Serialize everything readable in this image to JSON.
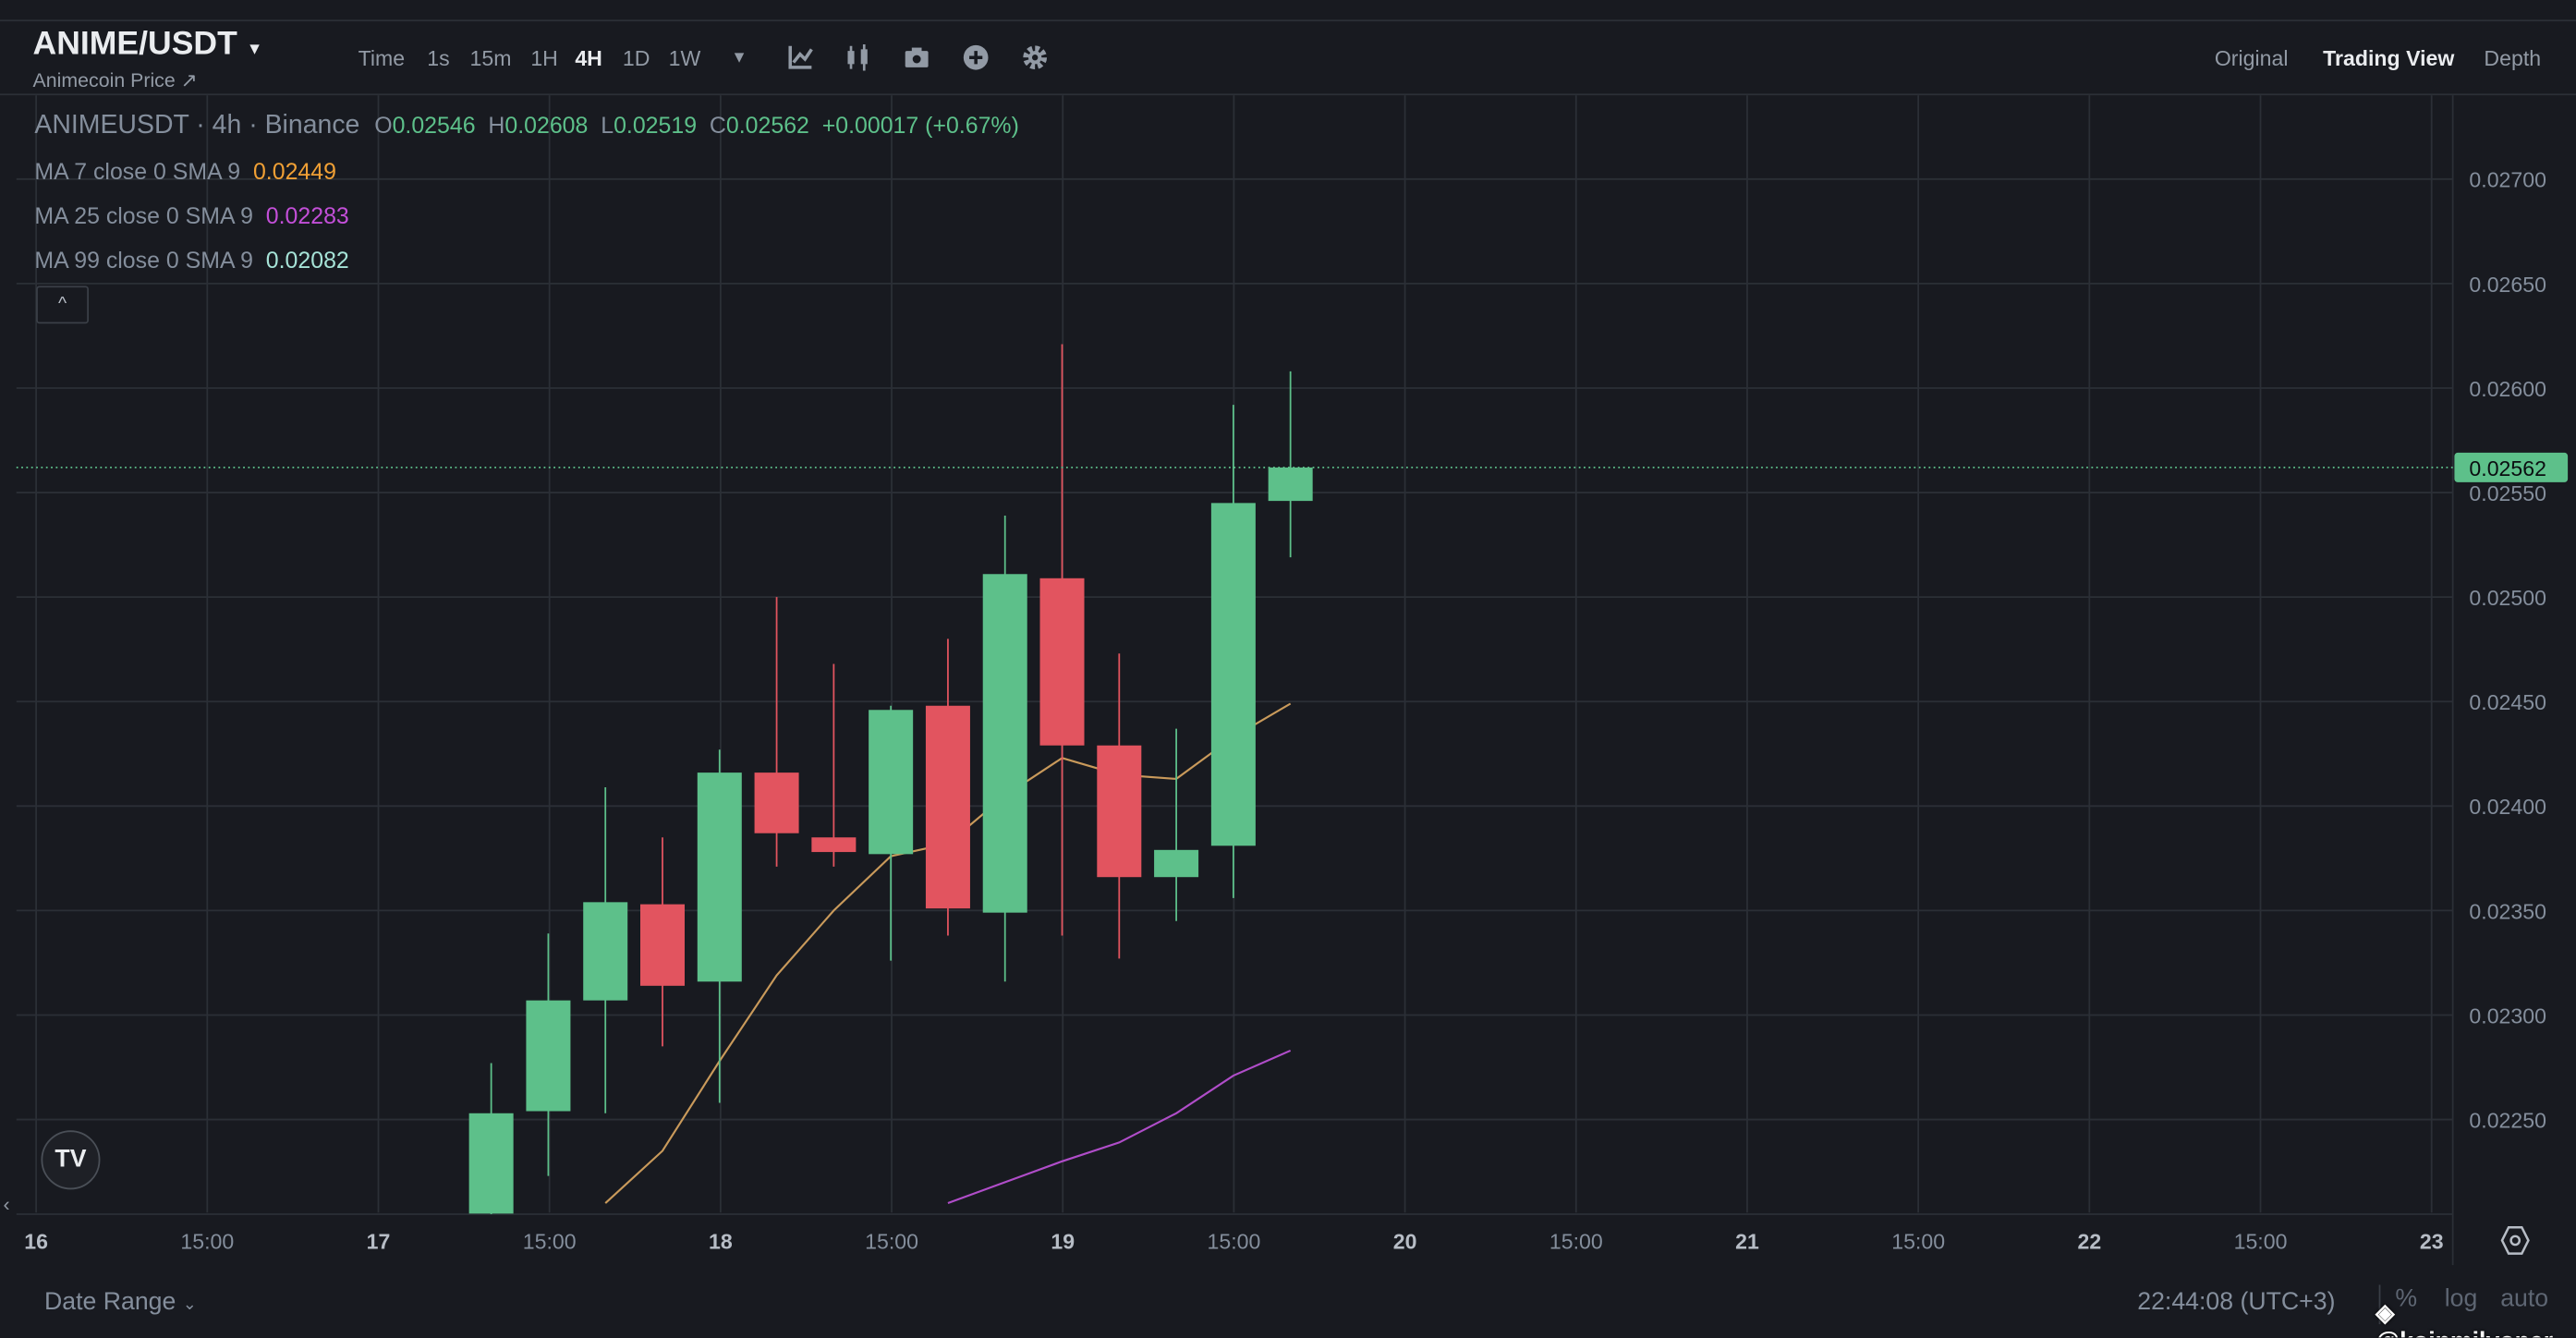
{
  "header": {
    "pair": "ANIME/USDT",
    "subtitle": "Animecoin Price ↗",
    "timeframes": [
      "Time",
      "1s",
      "15m",
      "1H",
      "4H",
      "1D",
      "1W"
    ],
    "active_timeframe": "4H",
    "tools": [
      "indicator-icon",
      "candle-type-icon",
      "camera-icon",
      "plus-circle-icon",
      "gear-icon"
    ],
    "views": [
      "Original",
      "Trading View",
      "Depth"
    ],
    "active_view": "Trading View"
  },
  "legend": {
    "symbol": "ANIMEUSDT · 4h · Binance",
    "o_label": "O",
    "o": "0.02546",
    "h_label": "H",
    "h": "0.02608",
    "l_label": "L",
    "l": "0.02519",
    "c_label": "C",
    "c": "0.02562",
    "change": "+0.00017 (+0.67%)",
    "ma": [
      {
        "label": "MA 7 close 0 SMA 9",
        "value": "0.02449",
        "color": "#f0a035"
      },
      {
        "label": "MA 25 close 0 SMA 9",
        "value": "0.02283",
        "color": "#c34fd8"
      },
      {
        "label": "MA 99 close 0 SMA 9",
        "value": "0.02082",
        "color": "#a6e3d7"
      }
    ]
  },
  "footer": {
    "date_range": "Date Range",
    "clock": "22:44:08 (UTC+3)",
    "percent": "%",
    "log": "log",
    "auto": "auto",
    "watermark": "@koinmilyoner"
  },
  "chart_data": {
    "type": "candlestick",
    "ylim": [
      0.0221,
      0.02745
    ],
    "y_ticks": [
      "0.02700",
      "0.02650",
      "0.02600",
      "0.02550",
      "0.02500",
      "0.02450",
      "0.02400",
      "0.02350",
      "0.02300",
      "0.02250"
    ],
    "x_ticks": [
      "16",
      "15:00",
      "17",
      "15:00",
      "18",
      "15:00",
      "19",
      "15:00",
      "20",
      "15:00",
      "21",
      "15:00",
      "22",
      "15:00",
      "23"
    ],
    "current_price": "0.02562",
    "up_color": "#5dc08a",
    "down_color": "#e2545f",
    "candles": [
      {
        "t": "17 08:00",
        "o": 0.02205,
        "h": 0.02277,
        "l": 0.0219,
        "c": 0.02253
      },
      {
        "t": "17 12:00",
        "o": 0.02254,
        "h": 0.02339,
        "l": 0.02223,
        "c": 0.02307
      },
      {
        "t": "17 16:00",
        "o": 0.02307,
        "h": 0.02409,
        "l": 0.02253,
        "c": 0.02354
      },
      {
        "t": "17 20:00",
        "o": 0.02353,
        "h": 0.02385,
        "l": 0.02285,
        "c": 0.02314
      },
      {
        "t": "18 00:00",
        "o": 0.02316,
        "h": 0.02427,
        "l": 0.02258,
        "c": 0.02416
      },
      {
        "t": "18 04:00",
        "o": 0.02416,
        "h": 0.025,
        "l": 0.02371,
        "c": 0.02387
      },
      {
        "t": "18 08:00",
        "o": 0.02385,
        "h": 0.02468,
        "l": 0.02371,
        "c": 0.02378
      },
      {
        "t": "18 12:00",
        "o": 0.02377,
        "h": 0.02448,
        "l": 0.02326,
        "c": 0.02446
      },
      {
        "t": "18 16:00",
        "o": 0.02448,
        "h": 0.0248,
        "l": 0.02338,
        "c": 0.02351
      },
      {
        "t": "18 20:00",
        "o": 0.02349,
        "h": 0.02539,
        "l": 0.02316,
        "c": 0.02511
      },
      {
        "t": "19 00:00",
        "o": 0.02509,
        "h": 0.02621,
        "l": 0.02338,
        "c": 0.02429
      },
      {
        "t": "19 04:00",
        "o": 0.02429,
        "h": 0.02473,
        "l": 0.02327,
        "c": 0.02366
      },
      {
        "t": "19 08:00",
        "o": 0.02366,
        "h": 0.02437,
        "l": 0.02345,
        "c": 0.02379
      },
      {
        "t": "19 12:00",
        "o": 0.02381,
        "h": 0.02592,
        "l": 0.02356,
        "c": 0.02545
      },
      {
        "t": "19 16:00",
        "o": 0.02546,
        "h": 0.02608,
        "l": 0.02519,
        "c": 0.02562
      }
    ],
    "ma7": [
      null,
      null,
      0.0221,
      0.02235,
      0.02278,
      0.02319,
      0.0235,
      0.02376,
      0.02382,
      0.02405,
      0.02423,
      0.02415,
      0.02413,
      0.02433,
      0.02449
    ],
    "ma25": [
      null,
      null,
      null,
      null,
      null,
      null,
      null,
      null,
      0.0221,
      0.0222,
      0.0223,
      0.02239,
      0.02253,
      0.02271,
      0.02283
    ]
  }
}
